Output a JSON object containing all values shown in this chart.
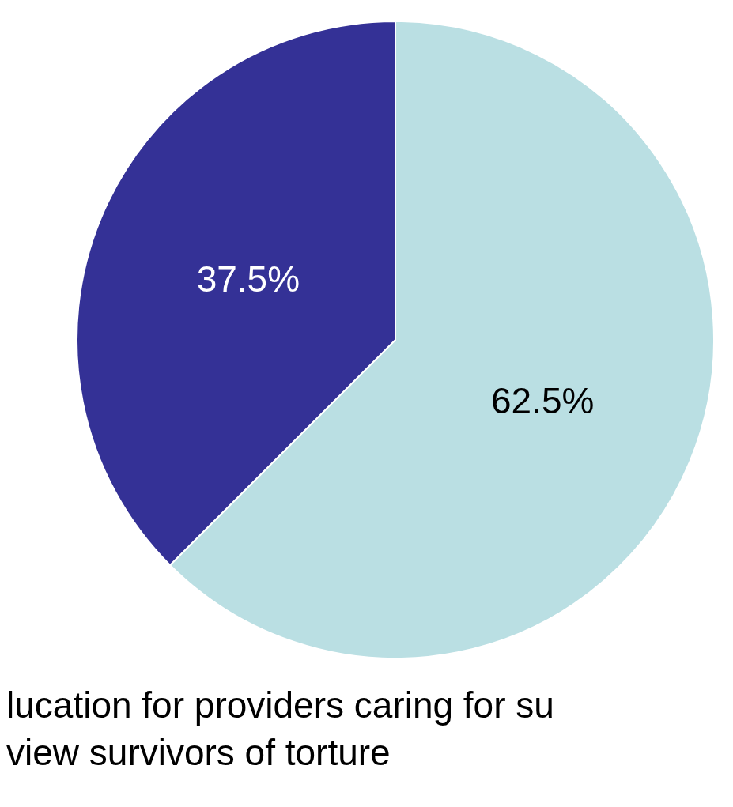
{
  "chart_data": {
    "type": "pie",
    "categories": [
      null,
      null
    ],
    "values": [
      62.5,
      37.5
    ],
    "colors": [
      "#badfe3",
      "#343196"
    ],
    "value_labels": [
      "62.5%",
      "37.5%"
    ],
    "annotations": [
      "lucation for providers caring for su",
      "view survivors of torture"
    ]
  }
}
